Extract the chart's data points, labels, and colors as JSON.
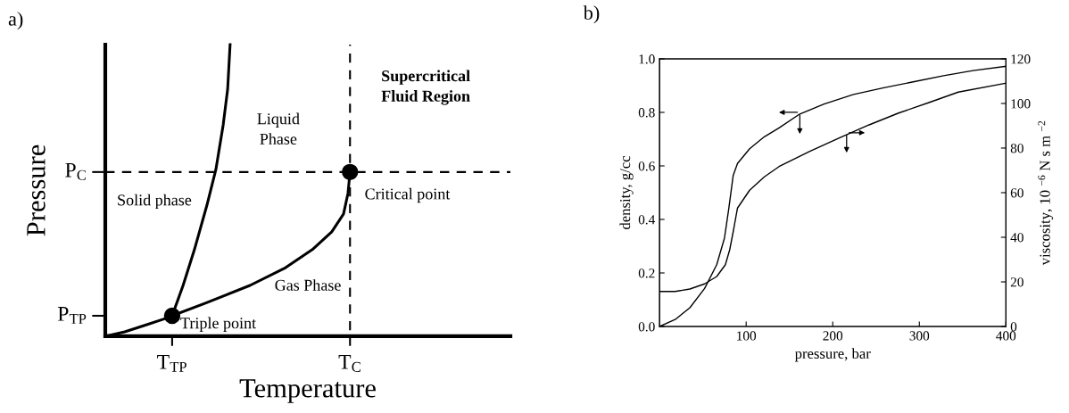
{
  "chart_data": [
    {
      "type": "other",
      "title": "a)",
      "xlabel": "Temperature",
      "ylabel": "Pressure",
      "annotations": [
        "Liquid\nPhase",
        "Supercritical\nFluid Region",
        "Solid phase",
        "Gas Phase",
        "Triple point",
        "Critical point",
        "T$_{TP}$",
        "T$_{C}$",
        "P$_{TP}$",
        "P$_{C}$"
      ]
    },
    {
      "type": "line",
      "title": "b)",
      "xlabel": "pressure, bar",
      "ylabel": "density, g/cc",
      "y2label": "viscosity, 10 $^{−6}$ N s m $^{−2}$",
      "xlim": [
        0,
        400
      ],
      "xticks": [
        100,
        200,
        300,
        400
      ],
      "ylim": [
        0,
        1.0
      ],
      "yticks": [
        {
          "value": 0,
          "label": "0.0"
        },
        {
          "value": 0.2,
          "label": "0.2"
        },
        {
          "value": 0.4,
          "label": "0.4"
        },
        {
          "value": 0.6,
          "label": "0.6"
        },
        {
          "value": 0.8,
          "label": "0.8"
        },
        {
          "value": 1.0,
          "label": "1.0"
        }
      ],
      "y2lim": [
        0,
        120
      ],
      "y2ticks": [
        0,
        20,
        40,
        60,
        80,
        100,
        120
      ],
      "series": [
        {
          "color": "#000000",
          "x": [
            0,
            18,
            35,
            52,
            66,
            75,
            80,
            85,
            90,
            104,
            121,
            138,
            162,
            190,
            224,
            259,
            293,
            328,
            362,
            400
          ],
          "values": [
            0,
            0.026,
            0.07,
            0.142,
            0.231,
            0.331,
            0.442,
            0.564,
            0.609,
            0.664,
            0.709,
            0.742,
            0.794,
            0.831,
            0.867,
            0.892,
            0.914,
            0.937,
            0.956,
            0.972
          ]
        },
        {
          "color": "#000000",
          "axis": "y2",
          "x": [
            0,
            18,
            35,
            52,
            66,
            76,
            81,
            85,
            90,
            104,
            121,
            138,
            173,
            207,
            242,
            276,
            311,
            345,
            400
          ],
          "values": [
            15.7,
            15.7,
            16.8,
            19.1,
            22.4,
            27.7,
            34.4,
            42.4,
            53.1,
            61.1,
            67.1,
            71.7,
            78.4,
            84.4,
            90.4,
            95.7,
            100.4,
            105.1,
            109.1
          ]
        }
      ]
    }
  ]
}
